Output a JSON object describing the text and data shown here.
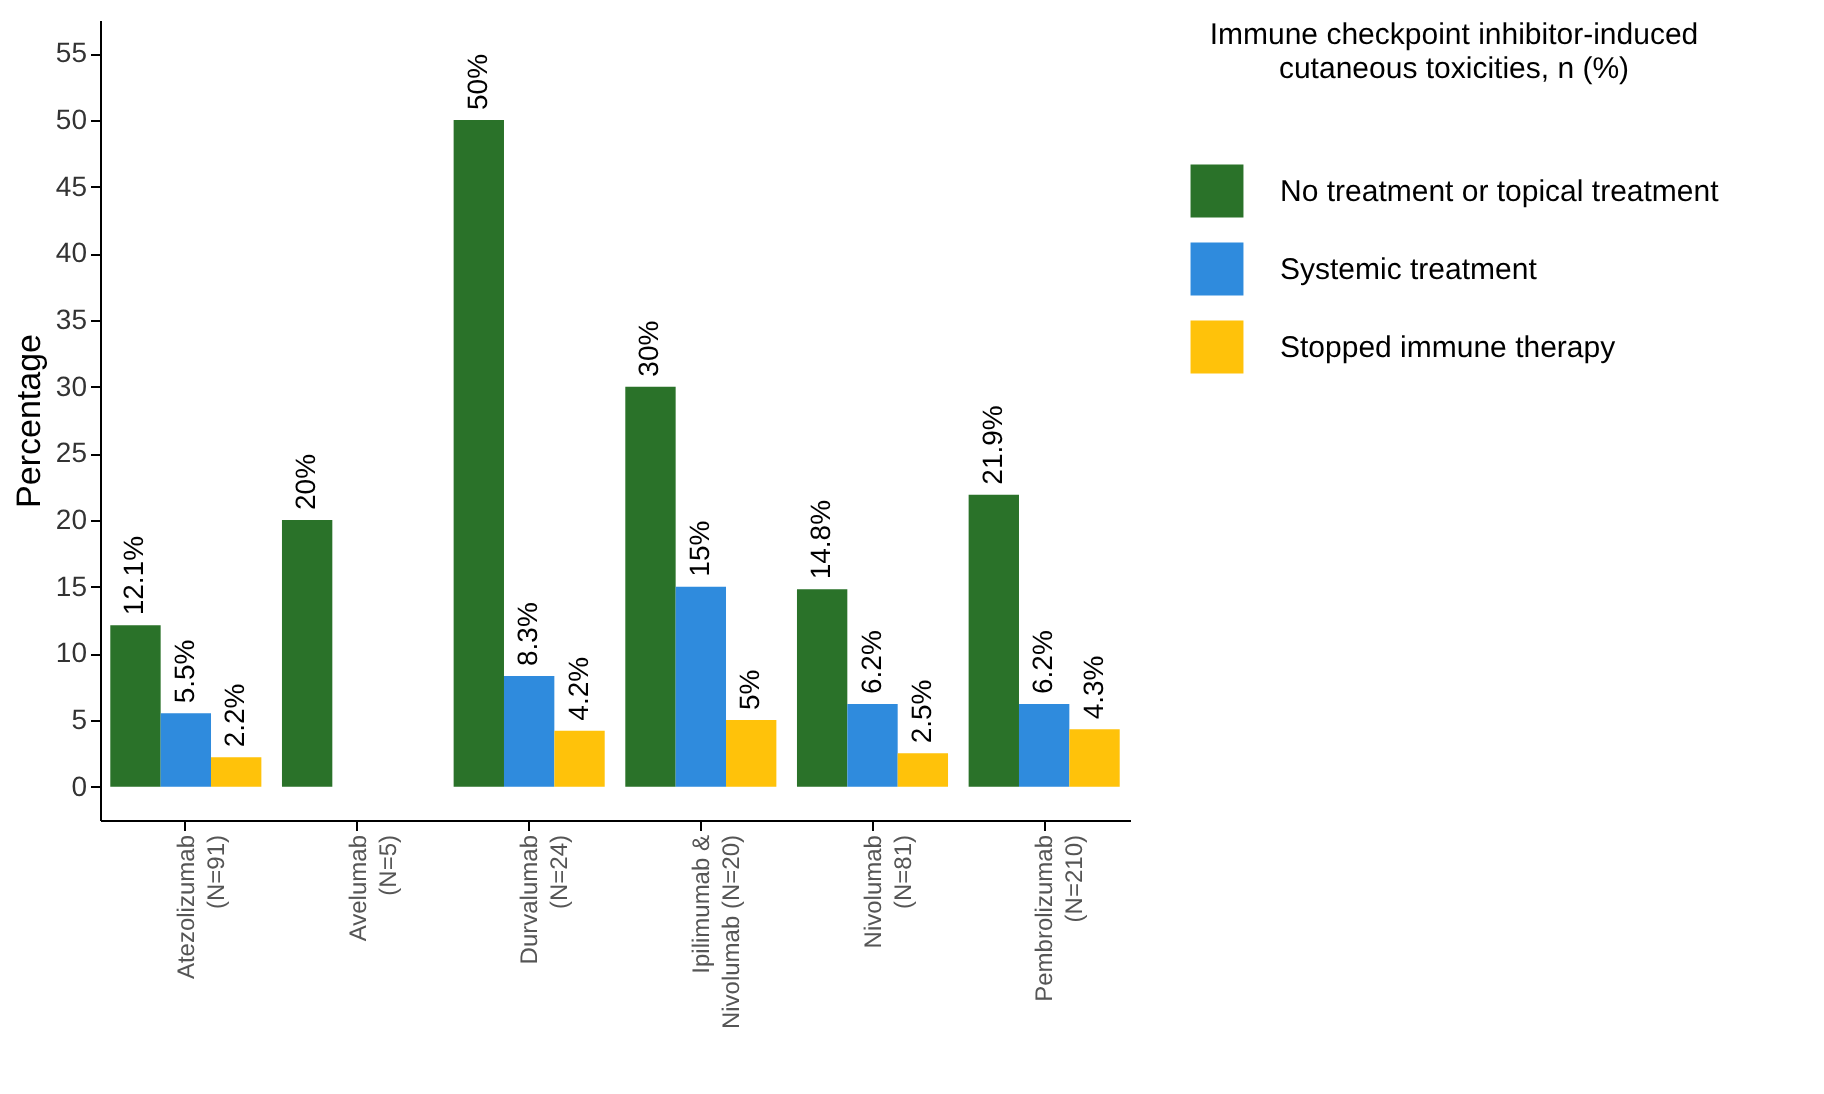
{
  "chart_data": {
    "type": "bar",
    "ylabel": "Percentage",
    "legend_title": "Immune checkpoint inhibitor-induced\ncutaneous toxicities, n (%)",
    "legend": "right",
    "grid": false,
    "categories": [
      "Atezolizumab\n(N=91)",
      "Avelumab\n(N=5)",
      "Durvalumab\n(N=24)",
      "Ipilimumab &\nNivolumab (N=20)",
      "Nivolumab\n(N=81)",
      "Pembrolizumab\n(N=210)"
    ],
    "ylim": [
      -2.5,
      57.5
    ],
    "yticks": [
      0,
      5,
      10,
      15,
      20,
      25,
      30,
      35,
      40,
      45,
      50,
      55
    ],
    "series": [
      {
        "name": "No treatment or topical treatment",
        "color": "#2a7229",
        "values": [
          12.1,
          20,
          50,
          30,
          14.8,
          21.9
        ],
        "value_labels": [
          "12.1%",
          "20%",
          "50%",
          "30%",
          "14.8%",
          "21.9%"
        ]
      },
      {
        "name": "Systemic treatment",
        "color": "#2f8bdd",
        "values": [
          5.5,
          null,
          8.3,
          15,
          6.2,
          6.2
        ],
        "value_labels": [
          "5.5%",
          null,
          "8.3%",
          "15%",
          "6.2%",
          "6.2%"
        ]
      },
      {
        "name": "Stopped immune therapy",
        "color": "#ffc20a",
        "values": [
          2.2,
          null,
          4.2,
          5,
          2.5,
          4.3
        ],
        "value_labels": [
          "2.2%",
          null,
          "4.2%",
          "5%",
          "2.5%",
          "4.3%"
        ]
      }
    ]
  }
}
